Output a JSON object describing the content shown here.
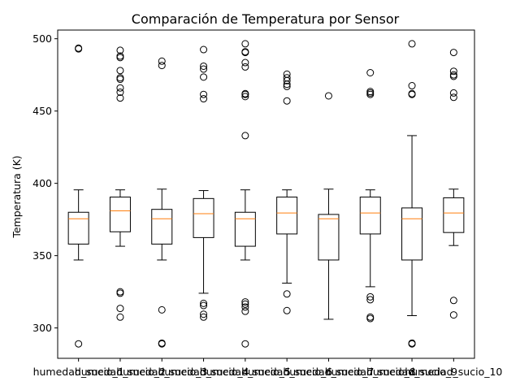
{
  "chart_data": {
    "type": "box",
    "title": "Comparación de Temperatura por Sensor",
    "xlabel": "",
    "ylabel": "Temperatura (K)",
    "ylim": [
      279,
      506
    ],
    "yticks": [
      300,
      350,
      400,
      450,
      500
    ],
    "grid": false,
    "median_color": "#ff7f0e",
    "box_color": "#000000",
    "categories": [
      "humedad_sucio_1",
      "humedad_sucio_2",
      "humedad_sucio_3",
      "humedad_sucio_4",
      "humedad_sucio_5",
      "humedad_sucio_6",
      "humedad_sucio_7",
      "humedad_sucio_8",
      "humedad_sucio_9",
      "humedad_sucio_10"
    ],
    "series": [
      {
        "min": 347,
        "q1": 358,
        "median": 375.5,
        "q3": 380,
        "max": 395.5,
        "outliers": [
          289,
          493,
          493.5
        ]
      },
      {
        "min": 356.5,
        "q1": 366.5,
        "median": 381,
        "q3": 390.5,
        "max": 395.5,
        "outliers": [
          307.5,
          313.5,
          324,
          325,
          459,
          463,
          466,
          472,
          473,
          478,
          487,
          488,
          492
        ]
      },
      {
        "min": 347,
        "q1": 358,
        "median": 375.5,
        "q3": 382,
        "max": 396,
        "outliers": [
          289,
          289.5,
          312.5,
          481.5,
          484.5
        ]
      },
      {
        "min": 324,
        "q1": 362.5,
        "median": 379,
        "q3": 389.5,
        "max": 395,
        "outliers": [
          307.5,
          309.5,
          315.5,
          317,
          458.5,
          461.5,
          473.5,
          479,
          481,
          492.5
        ]
      },
      {
        "min": 347,
        "q1": 356.5,
        "median": 375.5,
        "q3": 380,
        "max": 395.5,
        "outliers": [
          289,
          311.5,
          314.5,
          316.5,
          318,
          433,
          460,
          461.5,
          462,
          480.5,
          483.5,
          490.5,
          491,
          496.5
        ]
      },
      {
        "min": 331,
        "q1": 365,
        "median": 379.5,
        "q3": 390.5,
        "max": 395.5,
        "outliers": [
          312,
          323.5,
          457,
          467,
          468.5,
          471,
          473,
          475.5
        ]
      },
      {
        "min": 306,
        "q1": 347,
        "median": 375.5,
        "q3": 378.5,
        "max": 396,
        "outliers": [
          460.5
        ]
      },
      {
        "min": 328.5,
        "q1": 365,
        "median": 379.5,
        "q3": 390.5,
        "max": 395.5,
        "outliers": [
          306.5,
          307.5,
          319.5,
          321.5,
          461.5,
          462.5,
          463.5,
          476.5
        ]
      },
      {
        "min": 308.5,
        "q1": 347,
        "median": 375.5,
        "q3": 383,
        "max": 433,
        "outliers": [
          289,
          289.5,
          461.5,
          462,
          467.5,
          496.5
        ]
      },
      {
        "min": 357,
        "q1": 366,
        "median": 379.5,
        "q3": 390,
        "max": 396,
        "outliers": [
          309,
          319,
          459.5,
          462.5,
          474,
          475,
          477.5,
          490.5
        ]
      }
    ]
  }
}
